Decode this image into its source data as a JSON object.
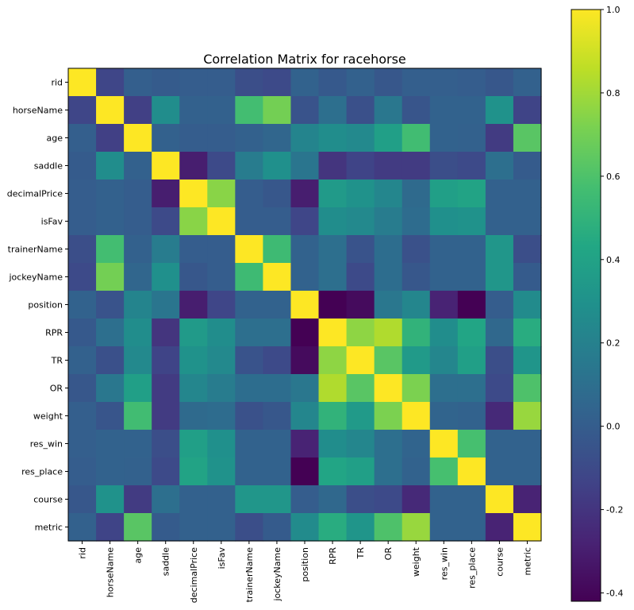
{
  "chart_data": {
    "type": "heatmap",
    "title": "Correlation Matrix for racehorse",
    "labels": [
      "rid",
      "horseName",
      "age",
      "saddle",
      "decimalPrice",
      "isFav",
      "trainerName",
      "jockeyName",
      "position",
      "RPR",
      "TR",
      "OR",
      "weight",
      "res_win",
      "res_place",
      "course",
      "metric"
    ],
    "colormap": "viridis",
    "vmin": -0.42,
    "vmax": 1.0,
    "colorbar_ticks": [
      "1.0",
      "0.8",
      "0.6",
      "0.4",
      "0.2",
      "0.0",
      "-0.2",
      "-0.4"
    ],
    "colorbar_tick_values": [
      1.0,
      0.8,
      0.6,
      0.4,
      0.2,
      0.0,
      -0.2,
      -0.4
    ],
    "matrix": [
      [
        1.0,
        -0.12,
        0.01,
        -0.01,
        0.0,
        0.0,
        -0.08,
        -0.1,
        0.03,
        -0.02,
        0.02,
        -0.03,
        0.01,
        0.01,
        0.0,
        -0.03,
        0.02
      ],
      [
        -0.12,
        1.0,
        -0.15,
        0.27,
        0.02,
        0.02,
        0.57,
        0.7,
        -0.05,
        0.1,
        -0.07,
        0.14,
        -0.04,
        0.03,
        0.03,
        0.3,
        -0.13
      ],
      [
        0.01,
        -0.15,
        1.0,
        0.02,
        0.0,
        0.0,
        0.02,
        0.05,
        0.22,
        0.27,
        0.25,
        0.38,
        0.56,
        0.03,
        0.02,
        -0.17,
        0.63
      ],
      [
        -0.01,
        0.27,
        0.02,
        1.0,
        -0.3,
        -0.1,
        0.17,
        0.29,
        0.13,
        -0.2,
        -0.13,
        -0.17,
        -0.17,
        -0.08,
        -0.1,
        0.1,
        -0.01
      ],
      [
        0.0,
        0.02,
        0.0,
        -0.3,
        1.0,
        0.75,
        0.0,
        -0.03,
        -0.3,
        0.35,
        0.3,
        0.23,
        0.07,
        0.38,
        0.41,
        0.02,
        0.02
      ],
      [
        0.0,
        0.02,
        0.0,
        -0.1,
        0.75,
        1.0,
        0.0,
        0.0,
        -0.12,
        0.27,
        0.25,
        0.17,
        0.08,
        0.29,
        0.3,
        0.02,
        0.02
      ],
      [
        -0.08,
        0.57,
        0.02,
        0.17,
        0.0,
        0.0,
        1.0,
        0.55,
        0.03,
        0.1,
        -0.05,
        0.09,
        -0.06,
        0.03,
        0.03,
        0.33,
        -0.08
      ],
      [
        -0.1,
        0.7,
        0.05,
        0.29,
        -0.03,
        0.0,
        0.55,
        1.0,
        0.03,
        0.1,
        -0.1,
        0.09,
        -0.03,
        0.03,
        0.03,
        0.33,
        -0.01
      ],
      [
        0.03,
        -0.05,
        0.22,
        0.13,
        -0.3,
        -0.12,
        0.03,
        0.03,
        1.0,
        -0.42,
        -0.38,
        0.14,
        0.23,
        -0.28,
        -0.42,
        0.0,
        0.26
      ],
      [
        -0.02,
        0.1,
        0.27,
        -0.2,
        0.35,
        0.27,
        0.1,
        0.1,
        -0.42,
        1.0,
        0.76,
        0.83,
        0.5,
        0.27,
        0.42,
        0.06,
        0.46
      ],
      [
        0.02,
        -0.07,
        0.25,
        -0.13,
        0.3,
        0.25,
        -0.05,
        -0.1,
        -0.38,
        0.76,
        1.0,
        0.63,
        0.35,
        0.23,
        0.38,
        -0.08,
        0.32
      ],
      [
        -0.03,
        0.14,
        0.38,
        -0.17,
        0.23,
        0.17,
        0.09,
        0.09,
        0.14,
        0.83,
        0.63,
        1.0,
        0.72,
        0.1,
        0.1,
        -0.1,
        0.6
      ],
      [
        0.01,
        -0.04,
        0.56,
        -0.17,
        0.07,
        0.08,
        -0.06,
        -0.03,
        0.23,
        0.5,
        0.35,
        0.72,
        1.0,
        0.04,
        0.03,
        -0.25,
        0.78
      ],
      [
        0.01,
        0.03,
        0.03,
        -0.08,
        0.38,
        0.29,
        0.03,
        0.03,
        -0.28,
        0.27,
        0.23,
        0.1,
        0.04,
        1.0,
        0.58,
        0.03,
        0.03
      ],
      [
        0.0,
        0.03,
        0.02,
        -0.1,
        0.41,
        0.3,
        0.03,
        0.03,
        -0.42,
        0.42,
        0.38,
        0.1,
        0.03,
        0.58,
        1.0,
        0.03,
        0.03
      ],
      [
        -0.03,
        0.3,
        -0.17,
        0.1,
        0.02,
        0.02,
        0.33,
        0.33,
        0.0,
        0.06,
        -0.08,
        -0.1,
        -0.25,
        0.03,
        0.03,
        1.0,
        -0.28
      ],
      [
        0.02,
        -0.13,
        0.63,
        -0.01,
        0.02,
        0.02,
        -0.08,
        -0.01,
        0.26,
        0.46,
        0.32,
        0.6,
        0.78,
        0.03,
        0.03,
        -0.28,
        1.0
      ]
    ]
  }
}
